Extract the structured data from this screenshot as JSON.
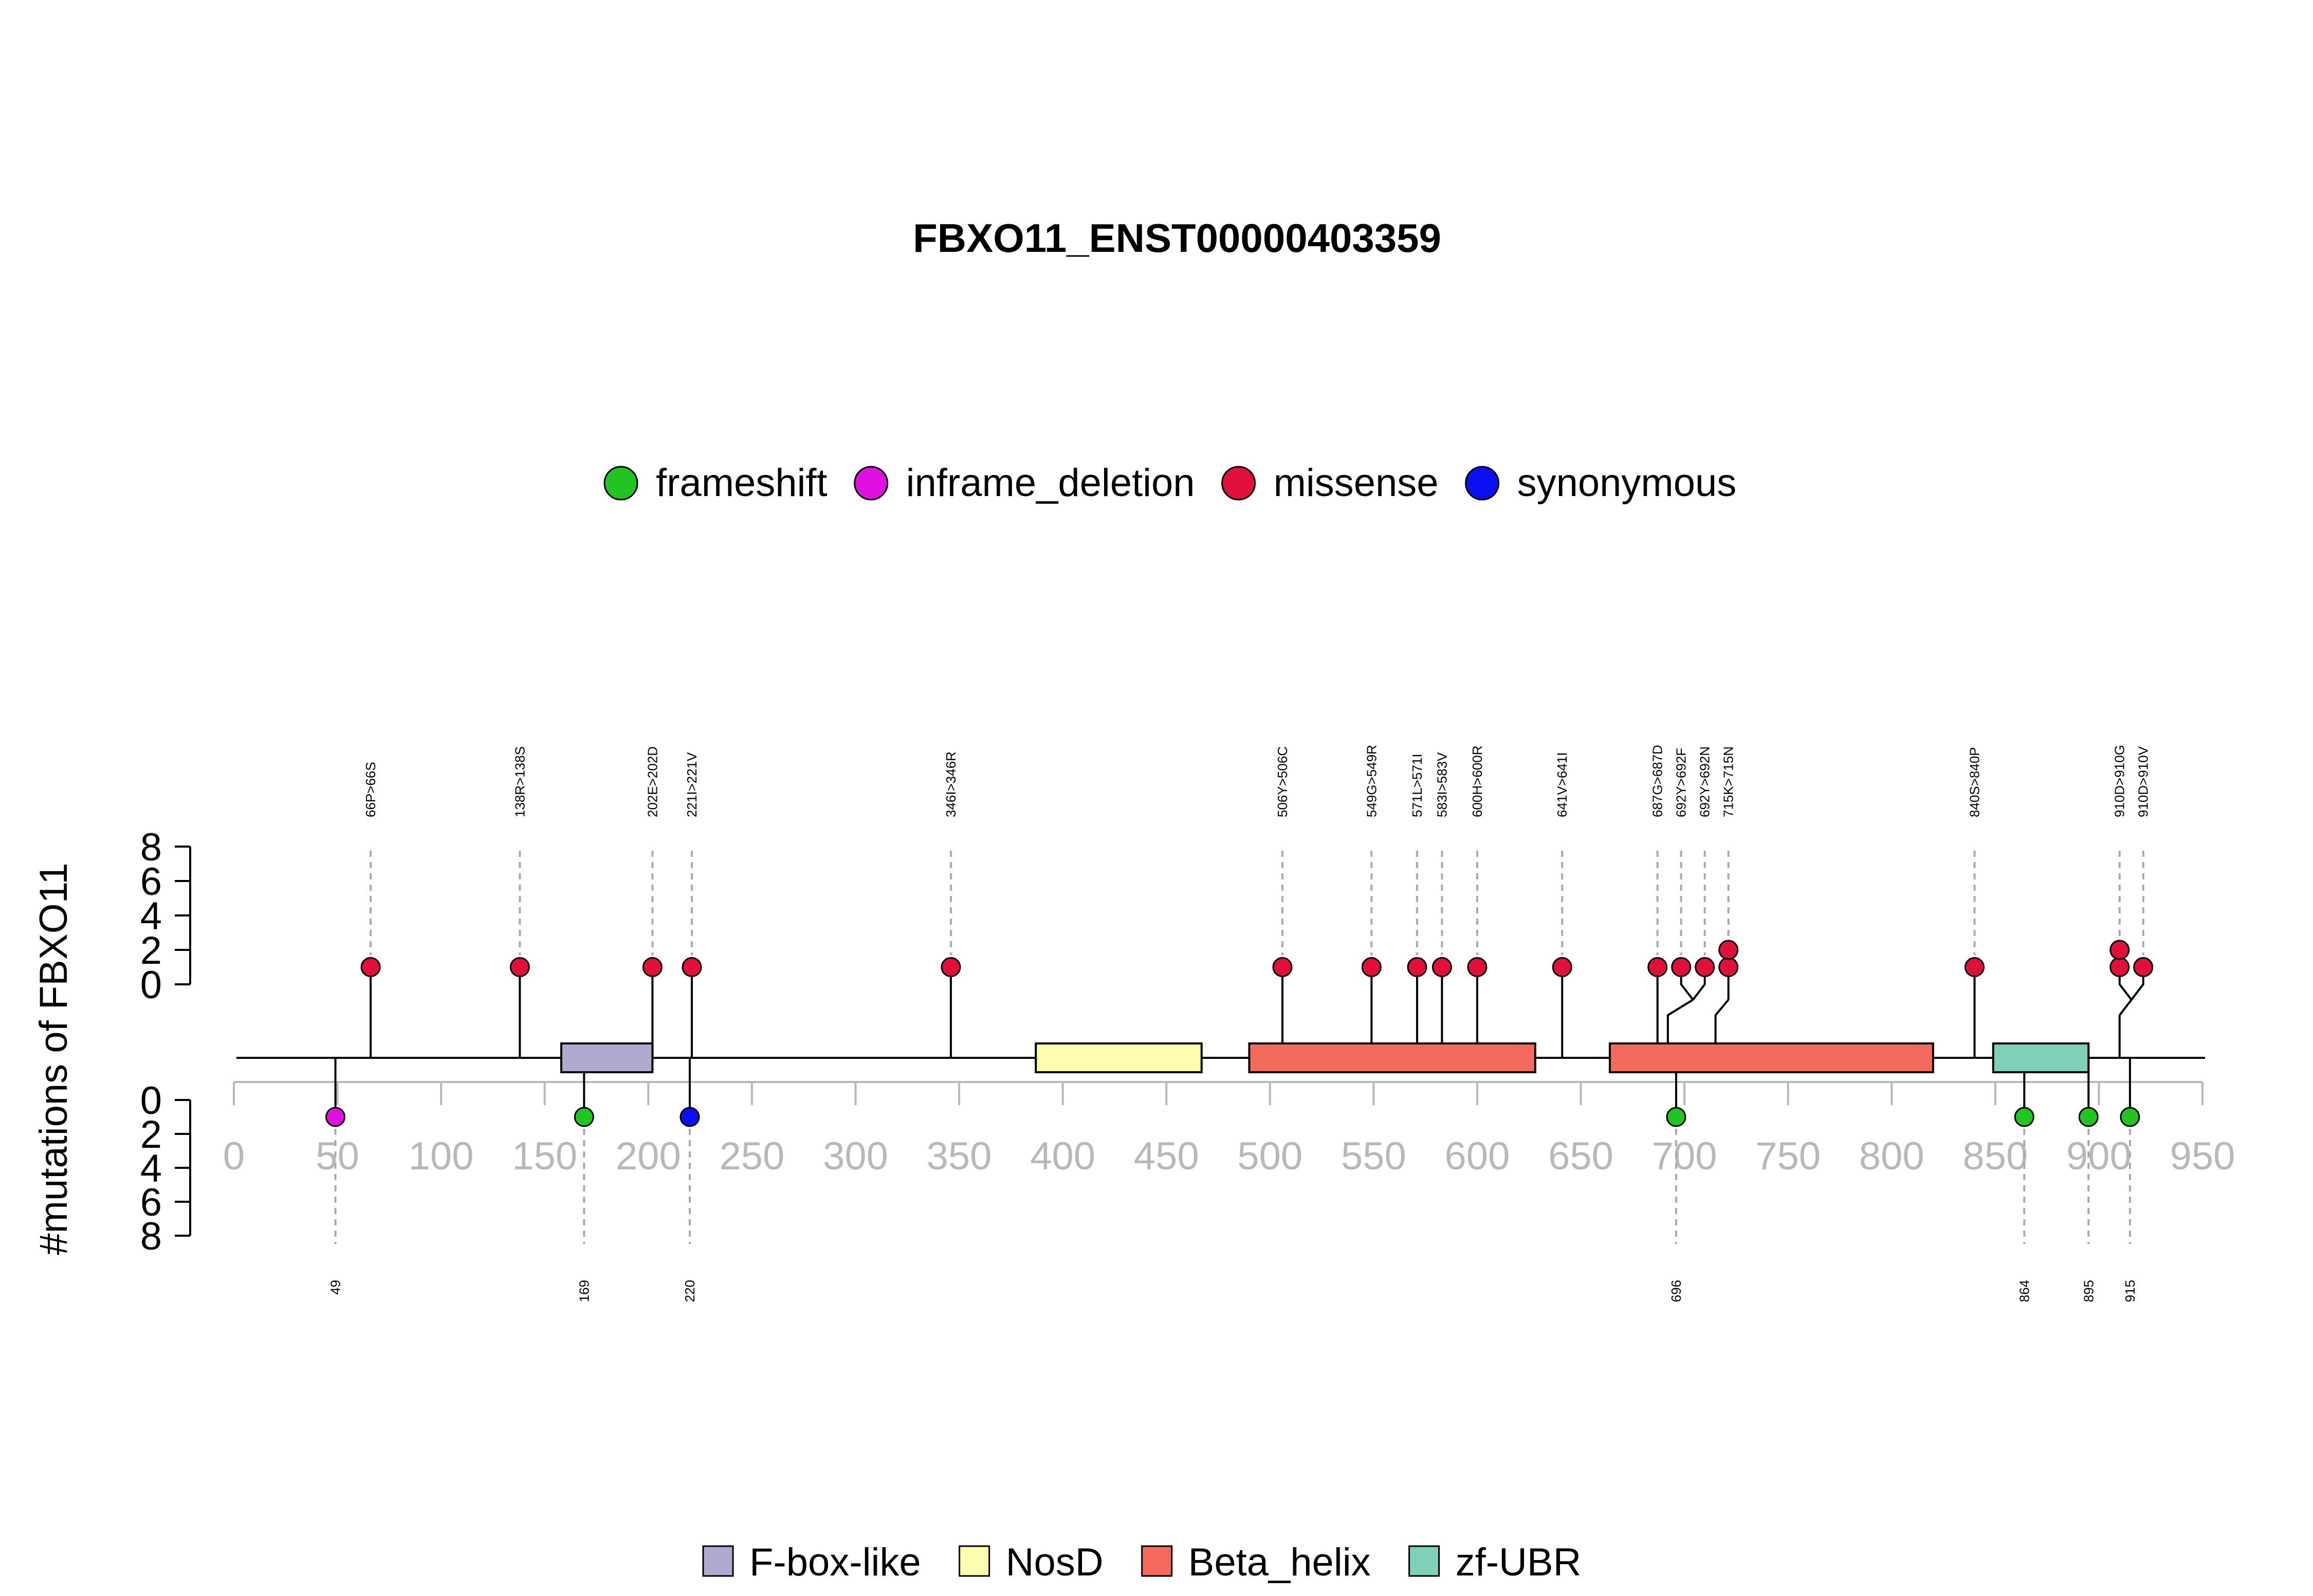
{
  "chart_data": {
    "type": "lollipop",
    "title": "FBXO11_ENST00000403359",
    "ylabel": "#mutations of FBXO11",
    "protein_length": 950,
    "xlim": [
      0,
      950
    ],
    "x_ticks": [
      0,
      50,
      100,
      150,
      200,
      250,
      300,
      350,
      400,
      450,
      500,
      550,
      600,
      650,
      700,
      750,
      800,
      850,
      900,
      950
    ],
    "y_ticks": [
      0,
      2,
      4,
      6,
      8
    ],
    "ylim": [
      0,
      8
    ],
    "colors": {
      "frameshift": "#22c422",
      "inframe_deletion": "#e010e0",
      "missense": "#e0103a",
      "synonymous": "#0a10f0",
      "F-box-like": "#b0aad0",
      "NosD": "#fdfdb0",
      "Beta_helix": "#f46a5c",
      "zf-UBR": "#80cfb8",
      "axis_gray": "#b8b8b8"
    },
    "mutation_legend": [
      {
        "key": "frameshift",
        "label": "frameshift"
      },
      {
        "key": "inframe_deletion",
        "label": "inframe_deletion"
      },
      {
        "key": "missense",
        "label": "missense"
      },
      {
        "key": "synonymous",
        "label": "synonymous"
      }
    ],
    "domain_legend": [
      {
        "key": "F-box-like",
        "label": "F-box-like"
      },
      {
        "key": "NosD",
        "label": "NosD"
      },
      {
        "key": "Beta_helix",
        "label": "Beta_helix"
      },
      {
        "key": "zf-UBR",
        "label": "zf-UBR"
      }
    ],
    "domains": [
      {
        "name": "F-box-like",
        "start": 158,
        "end": 202
      },
      {
        "name": "NosD",
        "start": 387,
        "end": 467
      },
      {
        "name": "Beta_helix",
        "start": 490,
        "end": 628
      },
      {
        "name": "Beta_helix",
        "start": 664,
        "end": 820
      },
      {
        "name": "zf-UBR",
        "start": 849,
        "end": 895
      }
    ],
    "top_mutations": [
      {
        "pos": 66,
        "label": "66P>66S",
        "type": "missense",
        "count": 1
      },
      {
        "pos": 138,
        "label": "138R>138S",
        "type": "missense",
        "count": 1
      },
      {
        "pos": 202,
        "label": "202E>202D",
        "type": "missense",
        "count": 1
      },
      {
        "pos": 221,
        "label": "221I>221V",
        "type": "missense",
        "count": 1
      },
      {
        "pos": 346,
        "label": "346I>346R",
        "type": "missense",
        "count": 1
      },
      {
        "pos": 506,
        "label": "506Y>506C",
        "type": "missense",
        "count": 1
      },
      {
        "pos": 549,
        "label": "549G>549R",
        "type": "missense",
        "count": 1
      },
      {
        "pos": 571,
        "label": "571L>571I",
        "type": "missense",
        "count": 1
      },
      {
        "pos": 583,
        "label": "583I>583V",
        "type": "missense",
        "count": 1
      },
      {
        "pos": 600,
        "label": "600H>600R",
        "type": "missense",
        "count": 1
      },
      {
        "pos": 641,
        "label": "641V>641I",
        "type": "missense",
        "count": 1
      },
      {
        "pos": 687,
        "label": "687G>687D",
        "type": "missense",
        "count": 1
      },
      {
        "pos": 692,
        "label": "692Y>692F",
        "type": "missense",
        "count": 1
      },
      {
        "pos": 692,
        "label": "692Y>692N",
        "type": "missense",
        "count": 1
      },
      {
        "pos": 715,
        "label": "715K>715N",
        "type": "missense",
        "count": 2
      },
      {
        "pos": 840,
        "label": "840S>840P",
        "type": "missense",
        "count": 1
      },
      {
        "pos": 910,
        "label": "910D>910G",
        "type": "missense",
        "count": 2
      },
      {
        "pos": 910,
        "label": "910D>910V",
        "type": "missense",
        "count": 1
      }
    ],
    "bottom_mutations": [
      {
        "pos": 49,
        "label": "49",
        "type": "inframe_deletion",
        "count": 1
      },
      {
        "pos": 169,
        "label": "169",
        "type": "frameshift",
        "count": 1
      },
      {
        "pos": 220,
        "label": "220",
        "type": "synonymous",
        "count": 1
      },
      {
        "pos": 696,
        "label": "696",
        "type": "frameshift",
        "count": 1
      },
      {
        "pos": 864,
        "label": "864",
        "type": "frameshift",
        "count": 1
      },
      {
        "pos": 895,
        "label": "895",
        "type": "frameshift",
        "count": 1
      },
      {
        "pos": 915,
        "label": "915",
        "type": "frameshift",
        "count": 1
      }
    ]
  }
}
